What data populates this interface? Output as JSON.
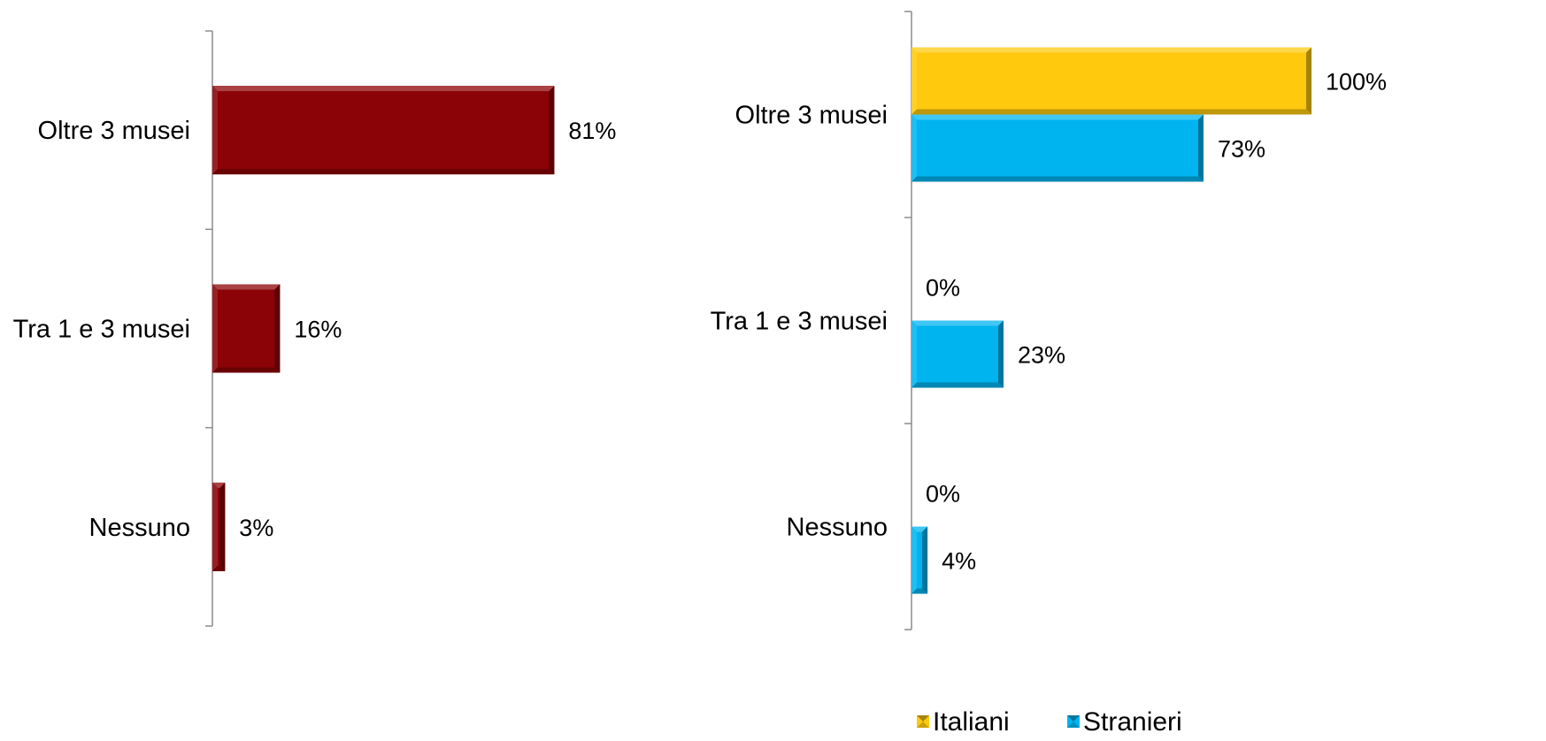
{
  "chart_data": [
    {
      "type": "bar",
      "orientation": "horizontal",
      "categories": [
        "Oltre 3 musei",
        "Tra 1 e 3 musei",
        "Nessuno"
      ],
      "series": [
        {
          "values": [
            81,
            16,
            3
          ],
          "labels": [
            "81%",
            "16%",
            "3%"
          ],
          "color": "#8b0306"
        }
      ],
      "xlim": [
        0,
        100
      ],
      "grid": false,
      "legend": "none"
    },
    {
      "type": "bar",
      "orientation": "horizontal",
      "categories": [
        "Oltre 3 musei",
        "Tra 1 e 3 musei",
        "Nessuno"
      ],
      "series": [
        {
          "name": "Italiani",
          "values": [
            100,
            0,
            0
          ],
          "labels": [
            "100%",
            "0%",
            "0%"
          ],
          "color": "#ffc90e"
        },
        {
          "name": "Stranieri",
          "values": [
            73,
            23,
            4
          ],
          "labels": [
            "73%",
            "23%",
            "4%"
          ],
          "color": "#00b4f0"
        }
      ],
      "xlim": [
        0,
        100
      ],
      "grid": false,
      "legend": "bottom"
    }
  ]
}
